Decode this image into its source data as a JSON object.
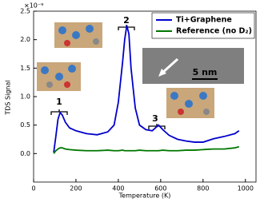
{
  "chart_data": {
    "type": "line",
    "x_label": "Temperature (K)",
    "y_label": "TDS Signal",
    "y_offset_text": "×10⁻⁹",
    "x": [
      95,
      105,
      115,
      125,
      135,
      150,
      170,
      200,
      250,
      300,
      350,
      380,
      400,
      420,
      430,
      440,
      450,
      460,
      480,
      500,
      530,
      560,
      590,
      610,
      640,
      680,
      720,
      760,
      800,
      850,
      900,
      950,
      970
    ],
    "series": [
      {
        "name": "Ti+Graphene",
        "color": "#0000cc",
        "values": [
          0.02,
          0.3,
          0.6,
          0.72,
          0.68,
          0.55,
          0.45,
          0.4,
          0.35,
          0.33,
          0.38,
          0.5,
          0.9,
          1.6,
          2.0,
          2.25,
          2.1,
          1.5,
          0.8,
          0.5,
          0.42,
          0.4,
          0.5,
          0.42,
          0.32,
          0.25,
          0.22,
          0.2,
          0.2,
          0.26,
          0.3,
          0.35,
          0.4
        ]
      },
      {
        "name": "Reference (no D₂)",
        "color": "#007700",
        "values": [
          0.0,
          0.05,
          0.08,
          0.1,
          0.1,
          0.08,
          0.07,
          0.06,
          0.05,
          0.05,
          0.06,
          0.05,
          0.05,
          0.06,
          0.05,
          0.05,
          0.05,
          0.05,
          0.05,
          0.06,
          0.05,
          0.05,
          0.05,
          0.06,
          0.05,
          0.05,
          0.06,
          0.06,
          0.07,
          0.08,
          0.08,
          0.1,
          0.12
        ]
      }
    ],
    "xlim": [
      0,
      1050
    ],
    "xticks": [
      0,
      200,
      400,
      600,
      800,
      1000
    ],
    "ylim": [
      -0.5,
      2.5
    ],
    "yticks": [
      {
        "value": 0,
        "label": "0.0"
      },
      {
        "value": 0.5,
        "label": "0.5"
      },
      {
        "value": 1,
        "label": "1.0"
      },
      {
        "value": 1.5,
        "label": "1.5"
      },
      {
        "value": 2,
        "label": "2.0"
      },
      {
        "value": 2.5,
        "label": "2.5"
      }
    ],
    "legend": "upper right",
    "annotations": [
      "1",
      "2",
      "3",
      "5 nm"
    ]
  }
}
